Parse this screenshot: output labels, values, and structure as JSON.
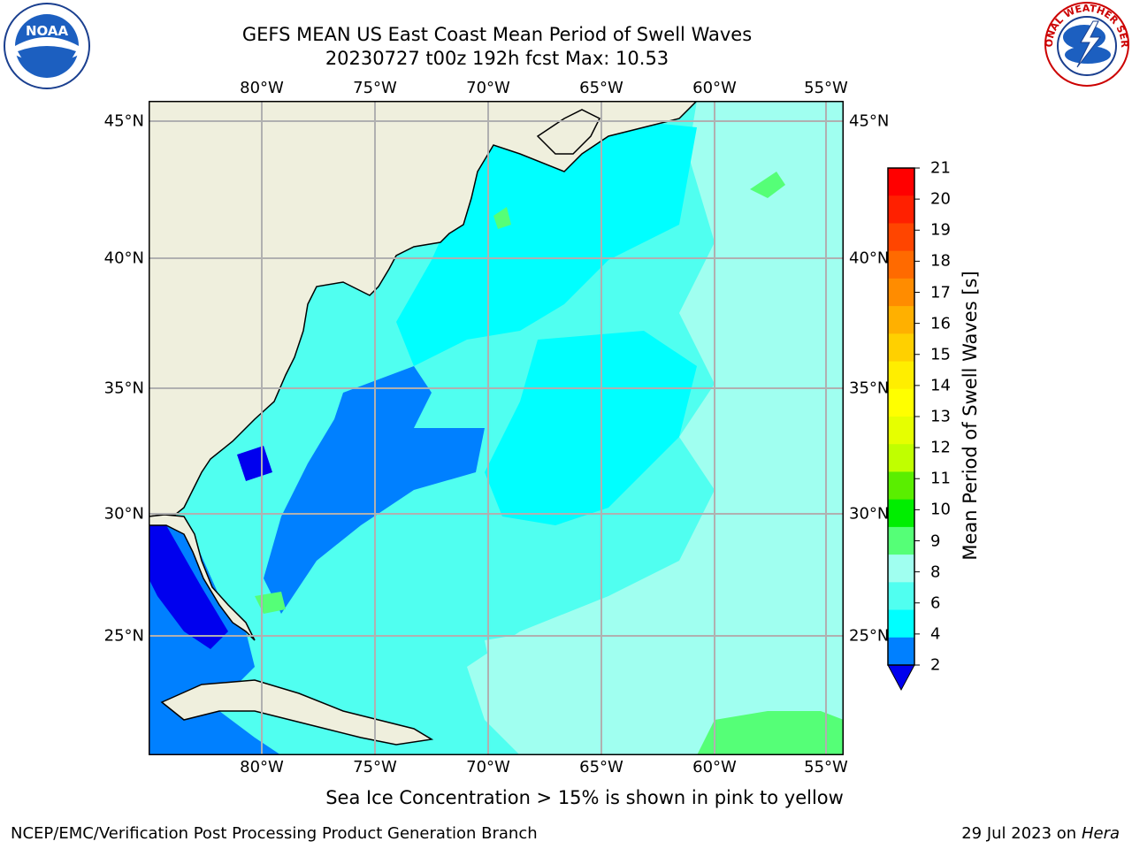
{
  "title_line1": "GEFS MEAN US East Coast Mean Period of Swell Waves",
  "title_line2": "20230727 t00z 192h fcst   Max: 10.53",
  "longitude_labels": [
    "80°W",
    "75°W",
    "70°W",
    "65°W",
    "60°W",
    "55°W"
  ],
  "latitude_labels": [
    "45°N",
    "40°N",
    "35°N",
    "30°N",
    "25°N"
  ],
  "colorbar": {
    "label": "Mean Period of Swell Waves [s]",
    "ticks": [
      "21",
      "20",
      "19",
      "18",
      "17",
      "16",
      "15",
      "14",
      "13",
      "12",
      "11",
      "10",
      "9",
      "8",
      "6",
      "4",
      "2"
    ],
    "colors": [
      "#ff0000",
      "#ff2000",
      "#ff4500",
      "#ff6a00",
      "#ff8c00",
      "#ffb000",
      "#ffd000",
      "#ffee00",
      "#ffff00",
      "#e6ff00",
      "#c0ff00",
      "#5aee00",
      "#00ee00",
      "#55ff77",
      "#a0fff0",
      "#50fff0",
      "#00ffff",
      "#0080ff"
    ],
    "extend_color": "#0000ee"
  },
  "map": {
    "extent": {
      "lon_min": -85,
      "lon_max": -54.2,
      "lat_min": 20.5,
      "lat_max": 45.8
    },
    "land_color": "#efefdd",
    "ocean_base_color": "#50fff0",
    "grid_color": "#b0b0b0"
  },
  "note": "Sea Ice Concentration > 15% is shown in pink to yellow",
  "footer_left": "NCEP/EMC/Verification Post Processing Product Generation Branch",
  "footer_date": "29 Jul 2023 on",
  "footer_host": "Hera",
  "logos": {
    "left_text": "NOAA",
    "right_text": "NATIONAL WEATHER SERVICE"
  }
}
